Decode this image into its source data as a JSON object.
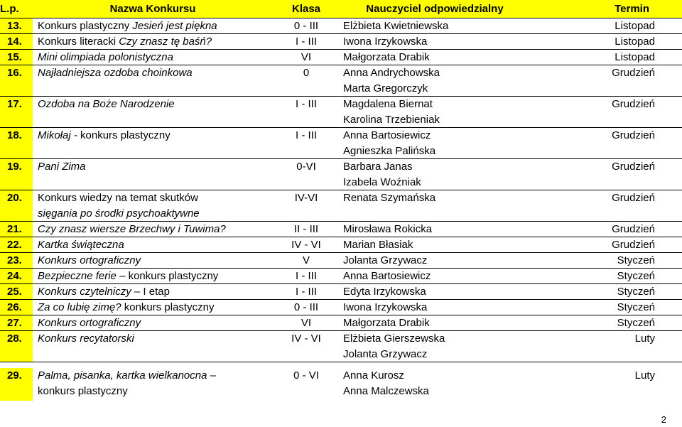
{
  "header": {
    "lp": "L.p.",
    "name": "Nazwa Konkursu",
    "class": "Klasa",
    "teacher": "Nauczyciel odpowiedzialny",
    "term": "Termin"
  },
  "rows": [
    {
      "lp": "13.",
      "name_parts": [
        "Konkurs plastyczny ",
        "Jesień jest piękna"
      ],
      "class": "0 - III",
      "teachers": [
        "Elżbieta Kwietniewska"
      ],
      "term": "Listopad"
    },
    {
      "lp": "14.",
      "name_parts": [
        "Konkurs literacki ",
        "Czy znasz tę baśń?"
      ],
      "class": "I - III",
      "teachers": [
        "Iwona Irzykowska"
      ],
      "term": "Listopad"
    },
    {
      "lp": "15.",
      "name_parts": [
        "Mini olimpiada polonistyczna"
      ],
      "class": "VI",
      "teachers": [
        "Małgorzata Drabik"
      ],
      "term": "Listopad"
    },
    {
      "lp": "16.",
      "name_parts": [
        "Najładniejsza ozdoba choinkowa"
      ],
      "class": "0",
      "teachers": [
        "Anna Andrychowska",
        "Marta Gregorczyk"
      ],
      "term": "Grudzień"
    },
    {
      "lp": "17.",
      "name_parts": [
        "Ozdoba na Boże Narodzenie"
      ],
      "class": "I - III",
      "teachers": [
        "Magdalena Biernat",
        "Karolina Trzebieniak"
      ],
      "term": "Grudzień"
    },
    {
      "lp": "18.",
      "name_parts": [
        "Mikołaj - ",
        "konkurs plastyczny"
      ],
      "class": "I - III",
      "teachers": [
        "Anna Bartosiewicz",
        "Agnieszka Palińska"
      ],
      "term": "Grudzień"
    },
    {
      "lp": "19.",
      "name_parts": [
        "Pani Zima"
      ],
      "class": "0-VI",
      "teachers": [
        "Barbara Janas",
        "Izabela Woźniak"
      ],
      "term": "Grudzień"
    },
    {
      "lp": "20.",
      "name_parts": [
        "Konkurs wiedzy na temat skutków",
        "sięgania po środki psychoaktywne"
      ],
      "class": "IV-VI",
      "teachers": [
        "Renata Szymańska"
      ],
      "term": "Grudzień"
    },
    {
      "lp": "21.",
      "name_parts": [
        "Czy znasz wiersze Brzechwy i Tuwima?"
      ],
      "class": "II - III",
      "teachers": [
        "Mirosława Rokicka"
      ],
      "term": "Grudzień"
    },
    {
      "lp": "22.",
      "name_parts": [
        "Kartka świąteczna"
      ],
      "class": "IV - VI",
      "teachers": [
        "Marian Błasiak"
      ],
      "term": "Grudzień"
    },
    {
      "lp": "23.",
      "name_parts": [
        "Konkurs ortograficzny"
      ],
      "class": "V",
      "teachers": [
        "Jolanta Grzywacz"
      ],
      "term": "Styczeń"
    },
    {
      "lp": "24.",
      "name_parts": [
        "Bezpieczne ferie",
        " – konkurs plastyczny"
      ],
      "class": "I - III",
      "teachers": [
        "Anna Bartosiewicz"
      ],
      "term": "Styczeń"
    },
    {
      "lp": "25.",
      "name_parts": [
        "Konkurs czytelniczy",
        " – I etap"
      ],
      "class": "I - III",
      "teachers": [
        "Edyta Irzykowska"
      ],
      "term": "Styczeń"
    },
    {
      "lp": "26.",
      "name_parts": [
        "Za co lubię zimę?",
        " konkurs plastyczny"
      ],
      "class": "0 - III",
      "teachers": [
        "Iwona Irzykowska"
      ],
      "term": "Styczeń"
    },
    {
      "lp": "27.",
      "name_parts": [
        "Konkurs ortograficzny"
      ],
      "class": "VI",
      "teachers": [
        "Małgorzata Drabik"
      ],
      "term": "Styczeń"
    },
    {
      "lp": "28.",
      "name_parts": [
        "Konkurs recytatorski"
      ],
      "class": "IV - VI",
      "teachers": [
        "Elżbieta Gierszewska",
        "Jolanta Grzywacz"
      ],
      "term": "Luty"
    },
    {
      "lp": "29.",
      "name_parts": [
        "Palma, pisanka, kartka wielkanocna –",
        "konkurs plastyczny"
      ],
      "class": "0 - VI",
      "teachers": [
        "Anna Kurosz",
        "Anna Malczewska"
      ],
      "term": "Luty"
    }
  ],
  "page_number": "2"
}
